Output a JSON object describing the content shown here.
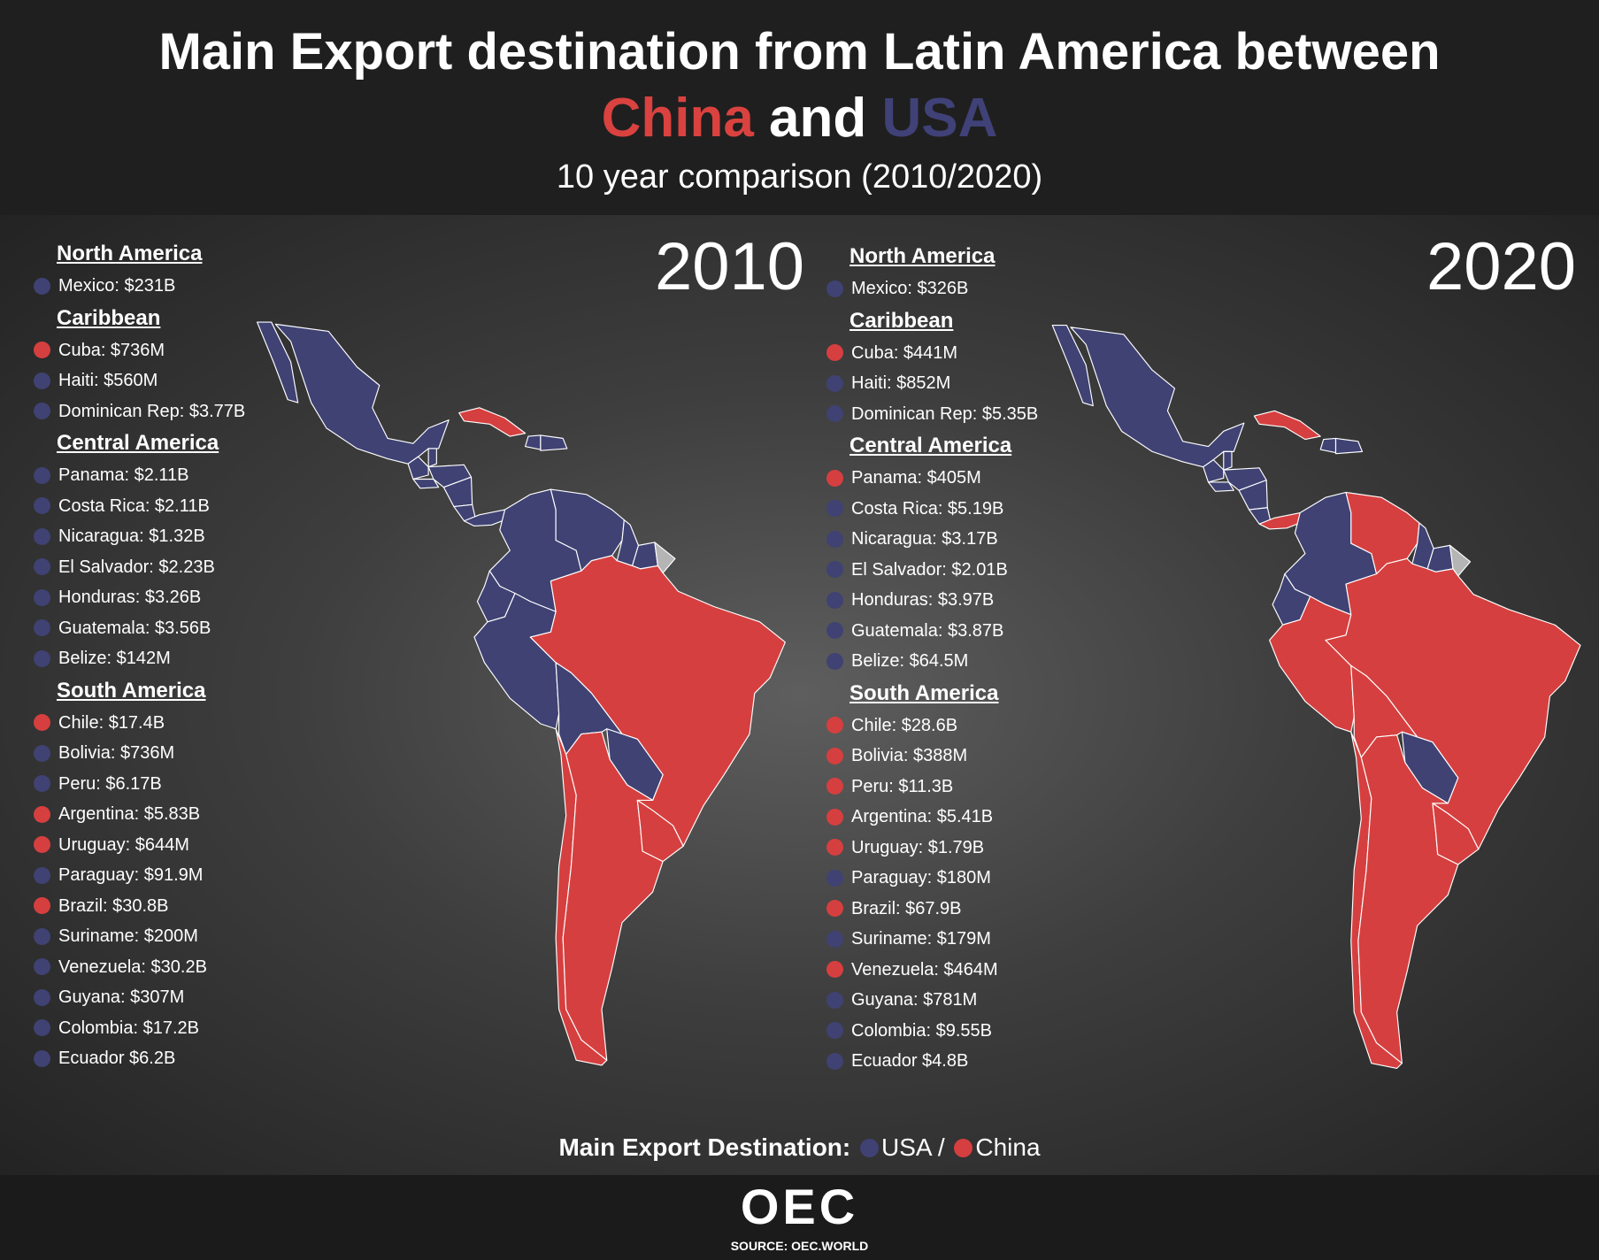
{
  "header": {
    "title_line1": "Main Export destination from Latin America between",
    "china": "China",
    "and": " and ",
    "usa": "USA",
    "subtitle": "10 year comparison (2010/2020)"
  },
  "colors": {
    "usa": "#3f4273",
    "china": "#d63f3f",
    "other": "#b5b5b5",
    "title_china": "#d9423f",
    "title_usa": "#3f4177"
  },
  "chart_data": {
    "type": "map",
    "title": "Main Export destination from Latin America between China and USA",
    "subtitle": "10 year comparison (2010/2020)",
    "years": [
      {
        "year": "2010",
        "regions": [
          {
            "name": "North America",
            "countries": [
              {
                "id": "mexico",
                "label": "Mexico: $231B",
                "dest": "usa"
              }
            ]
          },
          {
            "name": "Caribbean",
            "countries": [
              {
                "id": "cuba",
                "label": "Cuba: $736M",
                "dest": "china"
              },
              {
                "id": "haiti",
                "label": "Haiti: $560M",
                "dest": "usa"
              },
              {
                "id": "dominican",
                "label": "Dominican Rep: $3.77B",
                "dest": "usa"
              }
            ]
          },
          {
            "name": "Central America",
            "countries": [
              {
                "id": "panama",
                "label": "Panama: $2.11B",
                "dest": "usa"
              },
              {
                "id": "costarica",
                "label": "Costa Rica: $2.11B",
                "dest": "usa"
              },
              {
                "id": "nicaragua",
                "label": "Nicaragua: $1.32B",
                "dest": "usa"
              },
              {
                "id": "elsalvador",
                "label": "El Salvador: $2.23B",
                "dest": "usa"
              },
              {
                "id": "honduras",
                "label": "Honduras: $3.26B",
                "dest": "usa"
              },
              {
                "id": "guatemala",
                "label": "Guatemala: $3.56B",
                "dest": "usa"
              },
              {
                "id": "belize",
                "label": "Belize: $142M",
                "dest": "usa"
              }
            ]
          },
          {
            "name": "South America",
            "countries": [
              {
                "id": "chile",
                "label": "Chile: $17.4B",
                "dest": "china"
              },
              {
                "id": "bolivia",
                "label": "Bolivia: $736M",
                "dest": "usa"
              },
              {
                "id": "peru",
                "label": "Peru: $6.17B",
                "dest": "usa"
              },
              {
                "id": "argentina",
                "label": "Argentina: $5.83B",
                "dest": "china"
              },
              {
                "id": "uruguay",
                "label": "Uruguay: $644M",
                "dest": "china"
              },
              {
                "id": "paraguay",
                "label": "Paraguay: $91.9M",
                "dest": "usa"
              },
              {
                "id": "brazil",
                "label": "Brazil: $30.8B",
                "dest": "china"
              },
              {
                "id": "suriname",
                "label": "Suriname: $200M",
                "dest": "usa"
              },
              {
                "id": "venezuela",
                "label": "Venezuela: $30.2B",
                "dest": "usa"
              },
              {
                "id": "guyana",
                "label": "Guyana: $307M",
                "dest": "usa"
              },
              {
                "id": "colombia",
                "label": "Colombia: $17.2B",
                "dest": "usa"
              },
              {
                "id": "ecuador",
                "label": "Ecuador $6.2B",
                "dest": "usa"
              }
            ]
          }
        ]
      },
      {
        "year": "2020",
        "regions": [
          {
            "name": "North America",
            "countries": [
              {
                "id": "mexico",
                "label": "Mexico: $326B",
                "dest": "usa"
              }
            ]
          },
          {
            "name": "Caribbean",
            "countries": [
              {
                "id": "cuba",
                "label": "Cuba: $441M",
                "dest": "china"
              },
              {
                "id": "haiti",
                "label": "Haiti: $852M",
                "dest": "usa"
              },
              {
                "id": "dominican",
                "label": "Dominican Rep: $5.35B",
                "dest": "usa"
              }
            ]
          },
          {
            "name": "Central America",
            "countries": [
              {
                "id": "panama",
                "label": "Panama: $405M",
                "dest": "china"
              },
              {
                "id": "costarica",
                "label": "Costa Rica: $5.19B",
                "dest": "usa"
              },
              {
                "id": "nicaragua",
                "label": "Nicaragua: $3.17B",
                "dest": "usa"
              },
              {
                "id": "elsalvador",
                "label": "El Salvador: $2.01B",
                "dest": "usa"
              },
              {
                "id": "honduras",
                "label": "Honduras: $3.97B",
                "dest": "usa"
              },
              {
                "id": "guatemala",
                "label": "Guatemala: $3.87B",
                "dest": "usa"
              },
              {
                "id": "belize",
                "label": "Belize: $64.5M",
                "dest": "usa"
              }
            ]
          },
          {
            "name": "South America",
            "countries": [
              {
                "id": "chile",
                "label": "Chile: $28.6B",
                "dest": "china"
              },
              {
                "id": "bolivia",
                "label": "Bolivia: $388M",
                "dest": "china"
              },
              {
                "id": "peru",
                "label": "Peru: $11.3B",
                "dest": "china"
              },
              {
                "id": "argentina",
                "label": "Argentina: $5.41B",
                "dest": "china"
              },
              {
                "id": "uruguay",
                "label": "Uruguay: $1.79B",
                "dest": "china"
              },
              {
                "id": "paraguay",
                "label": "Paraguay: $180M",
                "dest": "usa"
              },
              {
                "id": "brazil",
                "label": "Brazil: $67.9B",
                "dest": "china"
              },
              {
                "id": "suriname",
                "label": "Suriname: $179M",
                "dest": "usa"
              },
              {
                "id": "venezuela",
                "label": "Venezuela: $464M",
                "dest": "china"
              },
              {
                "id": "guyana",
                "label": "Guyana: $781M",
                "dest": "usa"
              },
              {
                "id": "colombia",
                "label": "Colombia: $9.55B",
                "dest": "usa"
              },
              {
                "id": "ecuador",
                "label": "Ecuador $4.8B",
                "dest": "usa"
              }
            ]
          }
        ]
      }
    ],
    "legend": {
      "title": "Main Export Destination:",
      "usa": "USA",
      "sep": " / ",
      "china": "China",
      "placement": "bottom-center"
    }
  },
  "footer": {
    "logo": "OEC",
    "source": "SOURCE: OEC.WORLD"
  }
}
